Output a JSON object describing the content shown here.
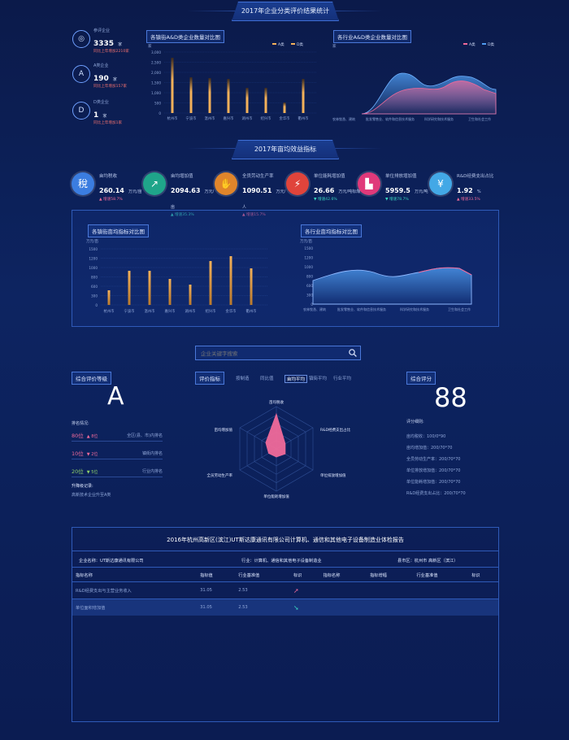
{
  "colors": {
    "accent": "#3b6fe0",
    "orange": "#f3b15a",
    "pink": "#f06a9a",
    "blue": "#4f9cf0",
    "up": "#f06a9a",
    "down": "#3ad5c0"
  },
  "section1": {
    "title": "2017年企业分类评价结果统计"
  },
  "summary": [
    {
      "icon": "grid-icon",
      "symbol": "◎",
      "label": "参评企业",
      "value": "3335",
      "unit": "家",
      "sub": "同比上年增加2210家",
      "subColor": "#e86d6d"
    },
    {
      "icon": "grade-a-icon",
      "symbol": "A",
      "label": "A类企业",
      "value": "190",
      "unit": "家",
      "sub": "同比上年增加157家",
      "subColor": "#e86d6d"
    },
    {
      "icon": "grade-d-icon",
      "symbol": "D",
      "label": "D类企业",
      "value": "1",
      "unit": "家",
      "sub": "同比上年增加1家",
      "subColor": "#e86d6d"
    }
  ],
  "barChart1": {
    "title": "各镇街A&D类企业数量对比图",
    "ylabel": "家",
    "legend": [
      "A类",
      "D类"
    ],
    "yticks": [
      "3,000",
      "2,500",
      "2,000",
      "1,500",
      "1,000",
      "500",
      "0"
    ],
    "categories": [
      "杭州市",
      "宁波市",
      "温州市",
      "嘉兴市",
      "湖州市",
      "绍兴市",
      "金华市",
      "衢州市"
    ]
  },
  "areaChart1": {
    "title": "各行业A&D类企业数量对比图",
    "ylabel": "家",
    "legend": [
      "A类",
      "D类"
    ],
    "categories": [
      "农林牧渔、建筑",
      "批发零售业、软件和信息技术服务",
      "科学研究和技术服务",
      "卫生和社会工作"
    ]
  },
  "section2": {
    "title": "2017年亩均效益指标"
  },
  "kpis": [
    {
      "icon": "tax-icon",
      "symbol": "稅",
      "bg": "#3b7de0",
      "name": "亩均税收",
      "value": "260.14",
      "unit": "万元/亩",
      "sub": "▲ 增速58.7%",
      "subColor": "#f06a9a"
    },
    {
      "icon": "growth-icon",
      "symbol": "↗",
      "bg": "#1fa58a",
      "name": "亩均增加值",
      "value": "2094.63",
      "unit": "万元/亩",
      "sub": "▲ 增速35.3%",
      "subColor": "#3ad5c0"
    },
    {
      "icon": "productivity-icon",
      "symbol": "✋",
      "bg": "#e0852b",
      "name": "全员劳动生产率",
      "value": "1090.51",
      "unit": "万元/人",
      "sub": "▲ 增速15.7%",
      "subColor": "#f06a9a"
    },
    {
      "icon": "energy-icon",
      "symbol": "⚡",
      "bg": "#e0443b",
      "name": "单位能耗增加值",
      "value": "26.66",
      "unit": "万元/吨标煤",
      "sub": "▼ 增速42.6%",
      "subColor": "#3ad5c0"
    },
    {
      "icon": "emission-icon",
      "symbol": "▙",
      "bg": "#e0397a",
      "name": "单位排放增加值",
      "value": "5959.5",
      "unit": "万元/吨",
      "sub": "▼ 增速78.7%",
      "subColor": "#3ad5c0"
    },
    {
      "icon": "rd-icon",
      "symbol": "¥",
      "bg": "#43a8e6",
      "name": "R&D经费支出占比",
      "value": "1.92",
      "unit": "%",
      "sub": "▲ 增速33.5%",
      "subColor": "#f06a9a"
    }
  ],
  "barChart2": {
    "title": "各镇街亩均指标对比图",
    "ylabel": "万元/亩",
    "yticks": [
      "1500",
      "1200",
      "1000",
      "800",
      "600",
      "300",
      "0"
    ],
    "categories": [
      "杭州市",
      "宁波市",
      "温州市",
      "嘉兴市",
      "湖州市",
      "绍兴市",
      "金华市",
      "衢州市"
    ]
  },
  "areaChart2": {
    "title": "各行业亩均指标对比图",
    "ylabel": "万元/亩",
    "yticks": [
      "1500",
      "1200",
      "1000",
      "800",
      "600",
      "300",
      "0"
    ],
    "categories": [
      "农林牧渔、建筑",
      "批发零售业、软件和信息技术服务",
      "科学研究和技术服务",
      "卫生和社会工作"
    ]
  },
  "search": {
    "placeholder": "企业关键字搜索"
  },
  "grade": {
    "title": "综合评价等级",
    "value": "A",
    "rankTitle": "排名情况:",
    "ranks": [
      {
        "rank": "80位",
        "change": "▲ 8位",
        "scope": "全区(县、市)内排名",
        "color": "#f06a9a"
      },
      {
        "rank": "10位",
        "change": "▼ 2位",
        "scope": "镇街内排名",
        "color": "#f06a9a"
      },
      {
        "rank": "20位",
        "change": "▼ 5位",
        "scope": "行业内排名",
        "color": "#8fd36a"
      }
    ],
    "upgradeTitle": "升降级记录:",
    "upgradeText": "高新技术企业升至A类"
  },
  "radar": {
    "title": "评价指标",
    "tabs": [
      "按制造",
      "同比值",
      "亩均平均",
      "镇街平均",
      "行业平均"
    ],
    "activeTab": 2,
    "labels": [
      "亩均税收",
      "R&D经费支出占比",
      "单位排放增加值",
      "单位能耗增加值",
      "全员劳动生产率",
      "亩均增加值"
    ]
  },
  "score": {
    "title": "综合评分",
    "value": "88",
    "detailTitle": "评分细则:",
    "rows": [
      "亩均税收：100/0*90",
      "亩均增加值：200/70*70",
      "全员劳动生产率：200/70*70",
      "单位排放增加值：200/70*70",
      "单位能耗增加值：200/70*70",
      "R&D经费支出占比：200/70*70"
    ]
  },
  "report": {
    "title": "2016年杭州高新区(滨江)UT斯达康通讯有限公司计算机、通信和其他电子设备制造业体检报告",
    "company": "企业名称：UT斯达康通讯有限公司",
    "industry": "行业：计算机、通信和其他电子设备制造业",
    "region": "县市区：杭州市 高新区（滨江）",
    "headers": [
      "指标名称",
      "指标值",
      "行业基准值",
      "标识",
      "指标名称",
      "指标增幅",
      "行业基准值",
      "标识"
    ],
    "rows": [
      {
        "name": "R&D经费支出与主营业务收入",
        "value": "31.05",
        "base": "2.53",
        "mark": "up"
      },
      {
        "name": "单位面积增加值",
        "value": "31.05",
        "base": "2.53",
        "mark": "down"
      }
    ]
  }
}
